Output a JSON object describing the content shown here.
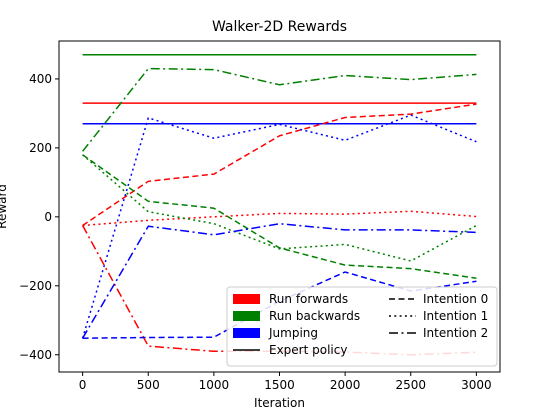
{
  "chart_data": {
    "type": "line",
    "title": "Walker-2D Rewards",
    "xlabel": "Iteration",
    "ylabel": "Reward",
    "xlim": [
      -180,
      3180
    ],
    "ylim": [
      -450,
      510
    ],
    "xticks": [
      0,
      500,
      1000,
      1500,
      2000,
      2500,
      3000
    ],
    "yticks": [
      -400,
      -200,
      0,
      200,
      400
    ],
    "x": [
      0,
      500,
      1000,
      1500,
      2000,
      2500,
      3000
    ],
    "grid": false,
    "legend_position": "lower-right",
    "colors": {
      "Run forwards": "#ff0000",
      "Run backwards": "#008000",
      "Jumping": "#0000ff"
    },
    "tasks": [
      "Run forwards",
      "Run backwards",
      "Jumping"
    ],
    "styles": [
      "Intention 0",
      "Intention 1",
      "Intention 2",
      "Expert policy"
    ],
    "series": [
      {
        "task": "Run forwards",
        "style": "Expert policy",
        "values": [
          330,
          330,
          330,
          330,
          330,
          330,
          330
        ]
      },
      {
        "task": "Run backwards",
        "style": "Expert policy",
        "values": [
          470,
          470,
          470,
          470,
          470,
          470,
          470
        ]
      },
      {
        "task": "Jumping",
        "style": "Expert policy",
        "values": [
          270,
          270,
          270,
          270,
          270,
          270,
          270
        ]
      },
      {
        "task": "Run forwards",
        "style": "Intention 0",
        "values": [
          -25,
          103,
          124,
          235,
          288,
          298,
          327
        ]
      },
      {
        "task": "Run forwards",
        "style": "Intention 1",
        "values": [
          -25,
          -10,
          0,
          10,
          8,
          16,
          1
        ]
      },
      {
        "task": "Run forwards",
        "style": "Intention 2",
        "values": [
          -25,
          -375,
          -390,
          -390,
          -392,
          -400,
          -393
        ]
      },
      {
        "task": "Run backwards",
        "style": "Intention 0",
        "values": [
          180,
          45,
          25,
          -90,
          -140,
          -150,
          -178
        ]
      },
      {
        "task": "Run backwards",
        "style": "Intention 1",
        "values": [
          180,
          15,
          -20,
          -93,
          -80,
          -128,
          -25
        ]
      },
      {
        "task": "Run backwards",
        "style": "Intention 2",
        "values": [
          190,
          430,
          427,
          383,
          410,
          398,
          413
        ]
      },
      {
        "task": "Jumping",
        "style": "Intention 0",
        "values": [
          -352,
          -350,
          -349,
          -245,
          -160,
          -215,
          -187
        ]
      },
      {
        "task": "Jumping",
        "style": "Intention 1",
        "values": [
          -352,
          287,
          228,
          268,
          222,
          295,
          218
        ]
      },
      {
        "task": "Jumping",
        "style": "Intention 2",
        "values": [
          -352,
          -27,
          -52,
          -20,
          -38,
          -38,
          -45
        ]
      }
    ]
  }
}
